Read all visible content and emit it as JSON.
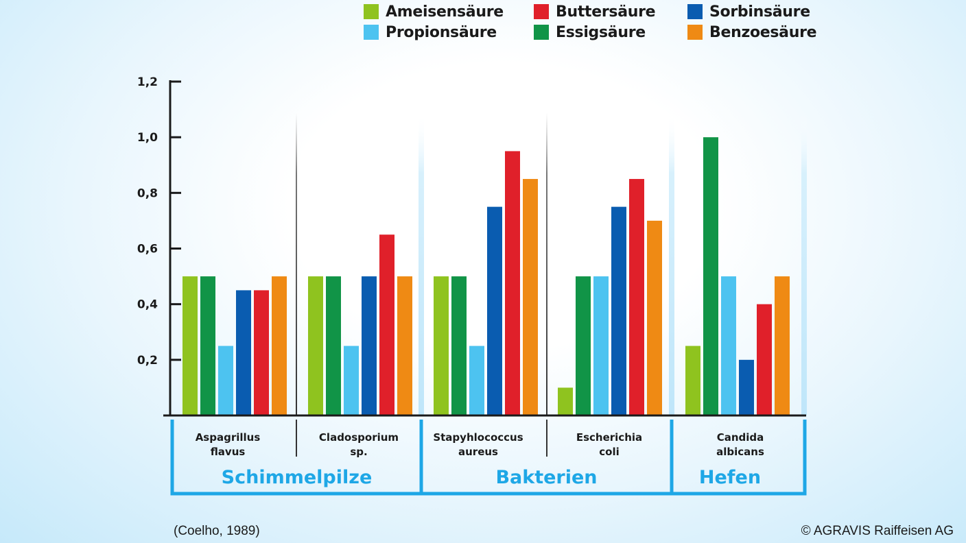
{
  "chart_data": {
    "type": "bar",
    "title": "",
    "xlabel": "",
    "ylabel": "",
    "ylim": [
      0,
      1.2
    ],
    "yticks": [
      "0,2",
      "0,4",
      "0,6",
      "0,8",
      "1,0",
      "1,2"
    ],
    "categories": [
      [
        "Aspagrillus",
        "flavus"
      ],
      [
        "Cladosporium",
        "sp."
      ],
      [
        "Stapyhlococcus",
        "aureus"
      ],
      [
        "Escherichia",
        "coli"
      ],
      [
        "Candida",
        "albicans"
      ]
    ],
    "groups": [
      {
        "label": "Schimmelpilze",
        "from": 0,
        "to": 1
      },
      {
        "label": "Bakterien",
        "from": 2,
        "to": 3
      },
      {
        "label": "Hefen",
        "from": 4,
        "to": 4
      }
    ],
    "series": [
      {
        "name": "Ameisensäure",
        "color": "#8fc31f",
        "values": [
          0.5,
          0.5,
          0.5,
          0.1,
          0.25
        ]
      },
      {
        "name": "Essigsäure",
        "color": "#119447",
        "values": [
          0.5,
          0.5,
          0.5,
          0.5,
          1.0
        ]
      },
      {
        "name": "Propionsäure",
        "color": "#4dc3f0",
        "values": [
          0.25,
          0.25,
          0.25,
          0.5,
          0.5
        ]
      },
      {
        "name": "Sorbinsäure",
        "color": "#0a5cb0",
        "values": [
          0.45,
          0.5,
          0.75,
          0.75,
          0.2
        ]
      },
      {
        "name": "Buttersäure",
        "color": "#e0202a",
        "values": [
          0.45,
          0.65,
          0.95,
          0.85,
          0.4
        ]
      },
      {
        "name": "Benzoesäure",
        "color": "#ef8a14",
        "values": [
          0.5,
          0.5,
          0.85,
          0.7,
          0.5
        ]
      }
    ],
    "legend_order": [
      "Ameisensäure",
      "Buttersäure",
      "Sorbinsäure",
      "Propionsäure",
      "Essigsäure",
      "Benzoesäure"
    ],
    "legend_position": "top",
    "grid": false
  },
  "source": "(Coelho, 1989)",
  "copyright": "© AGRAVIS Raiffeisen AG"
}
